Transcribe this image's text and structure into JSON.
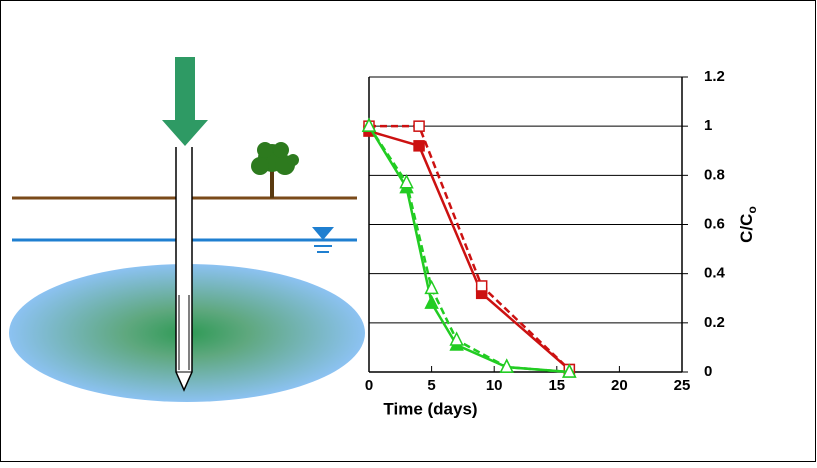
{
  "chart_data": {
    "type": "line",
    "x_label": "Time (days)",
    "y_label": "C/C",
    "y_label_sub": "o",
    "xlim": [
      0,
      25
    ],
    "xticks": [
      0,
      5,
      10,
      15,
      20,
      25
    ],
    "ylim": [
      0,
      1.2
    ],
    "yticks": [
      0,
      0.2,
      0.4,
      0.6,
      0.8,
      1,
      1.2
    ],
    "grid": true,
    "y_axis_side": "right",
    "series": [
      {
        "color": "#cc1111",
        "marker": "square",
        "filled": true,
        "dashed": false,
        "x": [
          0,
          4,
          9,
          16
        ],
        "values": [
          0.98,
          0.92,
          0.32,
          0.01
        ]
      },
      {
        "color": "#cc1111",
        "marker": "square",
        "filled": false,
        "dashed": true,
        "x": [
          0,
          4,
          9,
          16
        ],
        "values": [
          1,
          1,
          0.35,
          0.01
        ]
      },
      {
        "color": "#22cc22",
        "marker": "triangle",
        "filled": true,
        "dashed": false,
        "x": [
          0,
          3,
          5,
          7,
          11,
          16
        ],
        "values": [
          1,
          0.75,
          0.28,
          0.11,
          0.02,
          0
        ]
      },
      {
        "color": "#22cc22",
        "marker": "triangle",
        "filled": false,
        "dashed": true,
        "x": [
          0,
          3,
          5,
          7,
          11,
          16
        ],
        "values": [
          1,
          0.77,
          0.34,
          0.13,
          0.02,
          0
        ]
      }
    ]
  }
}
